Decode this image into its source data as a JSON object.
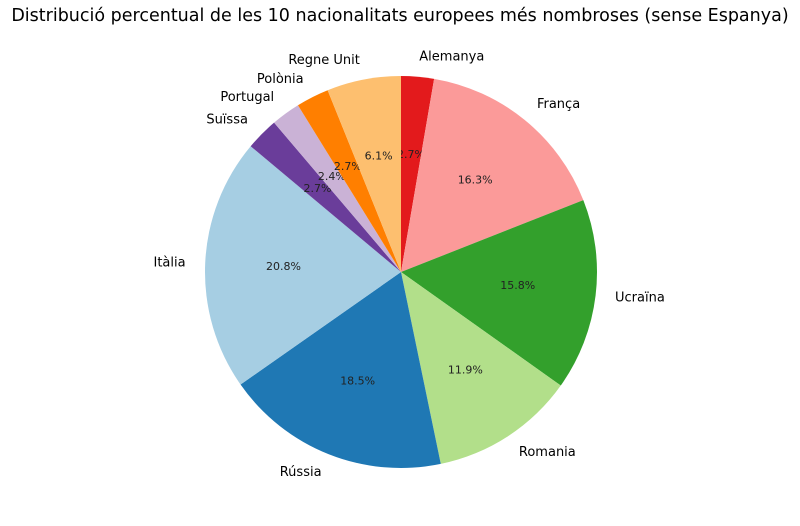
{
  "chart_data": {
    "type": "pie",
    "title": "Distribució percentual de les 10 nacionalitats europees més nombroses (sense Espanya)",
    "slices": [
      {
        "label": "Alemanya",
        "value": 2.7,
        "pct_label": "2.7%",
        "color": "#e31a1c"
      },
      {
        "label": "França",
        "value": 16.3,
        "pct_label": "16.3%",
        "color": "#fb9a99"
      },
      {
        "label": "Ucraïna",
        "value": 15.8,
        "pct_label": "15.8%",
        "color": "#33a02c"
      },
      {
        "label": "Romania",
        "value": 11.9,
        "pct_label": "11.9%",
        "color": "#b2df8a"
      },
      {
        "label": "Rússia",
        "value": 18.5,
        "pct_label": "18.5%",
        "color": "#1f78b4"
      },
      {
        "label": "Itàlia",
        "value": 20.8,
        "pct_label": "20.8%",
        "color": "#a6cee3"
      },
      {
        "label": "Suïssa",
        "value": 2.7,
        "pct_label": "2.7%",
        "color": "#6a3d9a"
      },
      {
        "label": "Portugal",
        "value": 2.4,
        "pct_label": "2.4%",
        "color": "#cab2d6"
      },
      {
        "label": "Polònia",
        "value": 2.7,
        "pct_label": "2.7%",
        "color": "#ff7f00"
      },
      {
        "label": "Regne Unit",
        "value": 6.1,
        "pct_label": "6.1%",
        "color": "#fdbf6f"
      }
    ],
    "start_angle": "top (12 o'clock)",
    "direction": "clockwise"
  }
}
